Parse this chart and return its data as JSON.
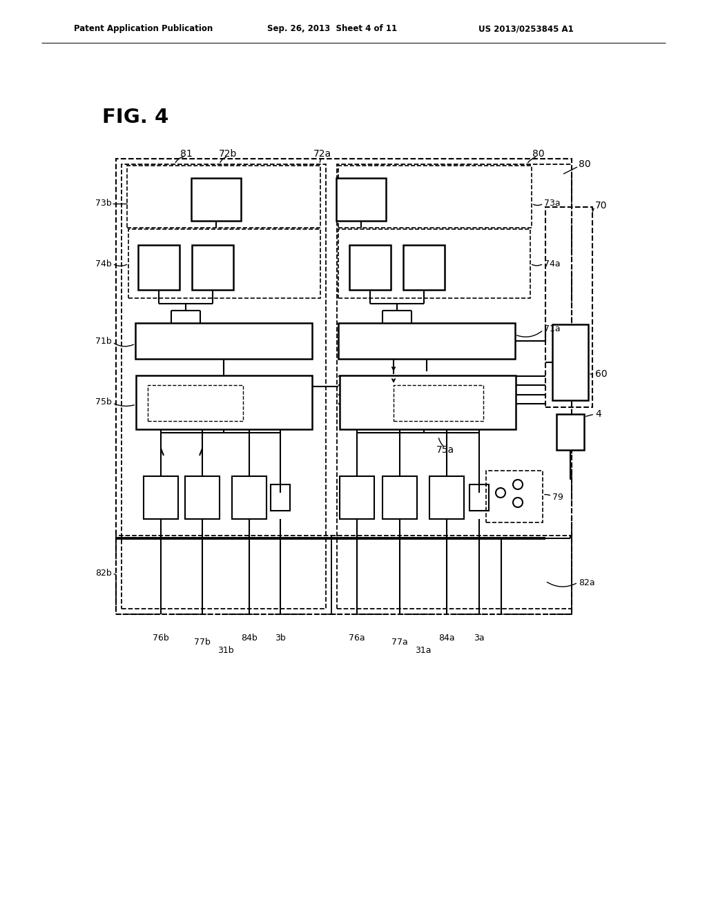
{
  "bg_color": "#ffffff",
  "header_left": "Patent Application Publication",
  "header_mid": "Sep. 26, 2013  Sheet 4 of 11",
  "header_right": "US 2013/0253845 A1",
  "fig_label": "FIG. 4",
  "page_width": 10.24,
  "page_height": 13.2,
  "dpi": 100
}
